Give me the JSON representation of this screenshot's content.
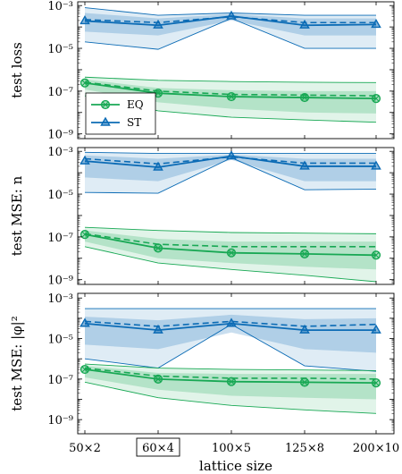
{
  "chart_data": [
    {
      "type": "line",
      "ylabel": "test loss",
      "yscale": "log",
      "ylim": [
        6e-10,
        0.0015
      ],
      "yticks": [
        {
          "value": 0.001,
          "label": "10⁻³"
        },
        {
          "value": 1e-05,
          "label": "10⁻⁵"
        },
        {
          "value": 1e-07,
          "label": "10⁻⁷"
        },
        {
          "value": 1e-09,
          "label": "10⁻⁹"
        }
      ],
      "legend": {
        "position": "bottom-left",
        "entries": [
          {
            "label": "EQ",
            "series": "EQ"
          },
          {
            "label": "ST",
            "series": "ST"
          }
        ]
      },
      "series": [
        {
          "name": "ST",
          "color": "#0b6bb5",
          "marker": "triangle",
          "median": [
            0.00019,
            0.00012,
            0.00032,
            0.00012,
            0.00013
          ],
          "mean": [
            0.00022,
            0.00016,
            0.0003,
            0.00016,
            0.00016
          ],
          "inner_band": {
            "low": [
              6e-05,
              4e-05,
              0.0002,
              4e-05,
              4e-05
            ],
            "high": [
              0.00045,
              0.00025,
              0.0004,
              0.00025,
              0.00025
            ]
          },
          "outer_band": {
            "low": [
              2e-05,
              9e-06,
              0.00025,
              1e-05,
              1e-05
            ],
            "high": [
              0.0008,
              0.00035,
              0.00045,
              0.00035,
              0.00035
            ]
          }
        },
        {
          "name": "EQ",
          "color": "#18a854",
          "marker": "circle-cross",
          "median": [
            2.4e-07,
            8e-08,
            5.5e-08,
            5e-08,
            4.5e-08
          ],
          "mean": [
            2.6e-07,
            1e-07,
            7e-08,
            6.5e-08,
            6e-08
          ],
          "inner_band": {
            "low": [
              1.2e-07,
              3e-08,
              1.5e-08,
              1e-08,
              9e-09
            ],
            "high": [
              3.5e-07,
              1.4e-07,
              1.1e-07,
              1e-07,
              1e-07
            ]
          },
          "outer_band": {
            "low": [
              6e-08,
              1.2e-08,
              6e-09,
              4.5e-09,
              3.5e-09
            ],
            "high": [
              4.5e-07,
              3.2e-07,
              2.8e-07,
              2.6e-07,
              2.5e-07
            ]
          }
        }
      ]
    },
    {
      "type": "line",
      "ylabel": "test MSE: n",
      "yscale": "log",
      "ylim": [
        6e-10,
        0.0015
      ],
      "yticks": [
        {
          "value": 0.001,
          "label": "10⁻³"
        },
        {
          "value": 1e-05,
          "label": "10⁻⁵"
        },
        {
          "value": 1e-07,
          "label": "10⁻⁷"
        },
        {
          "value": 1e-09,
          "label": "10⁻⁹"
        }
      ],
      "series": [
        {
          "name": "ST",
          "color": "#0b6bb5",
          "marker": "triangle",
          "median": [
            0.00035,
            0.00018,
            0.0006,
            0.0002,
            0.0002
          ],
          "mean": [
            0.00045,
            0.00026,
            0.00055,
            0.00028,
            0.00028
          ],
          "inner_band": {
            "low": [
              6e-05,
              4e-05,
              0.0004,
              4e-05,
              4e-05
            ],
            "high": [
              0.00065,
              0.00045,
              0.0007,
              0.00045,
              0.00045
            ]
          },
          "outer_band": {
            "low": [
              1.2e-05,
              1.1e-05,
              0.0005,
              1.6e-05,
              1.7e-05
            ],
            "high": [
              0.0009,
              0.0008,
              0.0008,
              0.0008,
              0.0008
            ]
          }
        },
        {
          "name": "EQ",
          "color": "#18a854",
          "marker": "circle-cross",
          "median": [
            1.3e-07,
            3e-08,
            1.8e-08,
            1.6e-08,
            1.4e-08
          ],
          "mean": [
            1.4e-07,
            4.5e-08,
            3.5e-08,
            3.5e-08,
            3.5e-08
          ],
          "inner_band": {
            "low": [
              6e-08,
              1e-08,
              6e-09,
              4e-09,
              3e-09
            ],
            "high": [
              2e-07,
              8e-08,
              6e-08,
              6e-08,
              6e-08
            ]
          },
          "outer_band": {
            "low": [
              3.5e-08,
              6e-09,
              3e-09,
              1.6e-09,
              8e-10
            ],
            "high": [
              2.8e-07,
              2e-07,
              1.6e-07,
              1.5e-07,
              1.4e-07
            ]
          }
        }
      ]
    },
    {
      "type": "line",
      "ylabel": "test MSE: |φ|²",
      "yscale": "log",
      "ylim": [
        2e-10,
        0.0017
      ],
      "yticks": [
        {
          "value": 0.001,
          "label": "10⁻³"
        },
        {
          "value": 1e-05,
          "label": "10⁻⁵"
        },
        {
          "value": 1e-07,
          "label": "10⁻⁷"
        },
        {
          "value": 1e-09,
          "label": "10⁻⁹"
        }
      ],
      "x_categories": [
        "50×2",
        "60×4",
        "100×5",
        "125×8",
        "200×10"
      ],
      "highlighted_category": "60×4",
      "xlabel": "lattice size",
      "series": [
        {
          "name": "ST",
          "color": "#0b6bb5",
          "marker": "triangle",
          "median": [
            5.5e-05,
            2.6e-05,
            5.5e-05,
            2.6e-05,
            2.6e-05
          ],
          "mean": [
            7e-05,
            4e-05,
            7e-05,
            4e-05,
            5e-05
          ],
          "inner_band": {
            "low": [
              5e-06,
              3e-06,
              2e-05,
              3e-06,
              2e-06
            ],
            "high": [
              0.00012,
              8e-05,
              0.00015,
              9e-05,
              0.0001
            ]
          },
          "outer_band": {
            "low": [
              1e-06,
              3.5e-07,
              5e-05,
              4.5e-07,
              2.4e-07
            ],
            "high": [
              0.0003,
              0.0003,
              0.0003,
              0.0003,
              0.0003
            ]
          }
        },
        {
          "name": "EQ",
          "color": "#18a854",
          "marker": "circle-cross",
          "median": [
            3e-07,
            1e-07,
            7.5e-08,
            7e-08,
            6.5e-08
          ],
          "mean": [
            3.5e-07,
            1.4e-07,
            1.1e-07,
            1.1e-07,
            1e-07
          ],
          "inner_band": {
            "low": [
              1.2e-07,
              3e-08,
              1.5e-08,
              1.2e-08,
              1e-08
            ],
            "high": [
              4.5e-07,
              2e-07,
              1.8e-07,
              1.8e-07,
              1.8e-07
            ]
          },
          "outer_band": {
            "low": [
              7e-08,
              1.2e-08,
              5e-09,
              3e-09,
              2e-09
            ],
            "high": [
              5.5e-07,
              3.5e-07,
              3e-07,
              2.8e-07,
              2.6e-07
            ]
          }
        }
      ]
    }
  ]
}
